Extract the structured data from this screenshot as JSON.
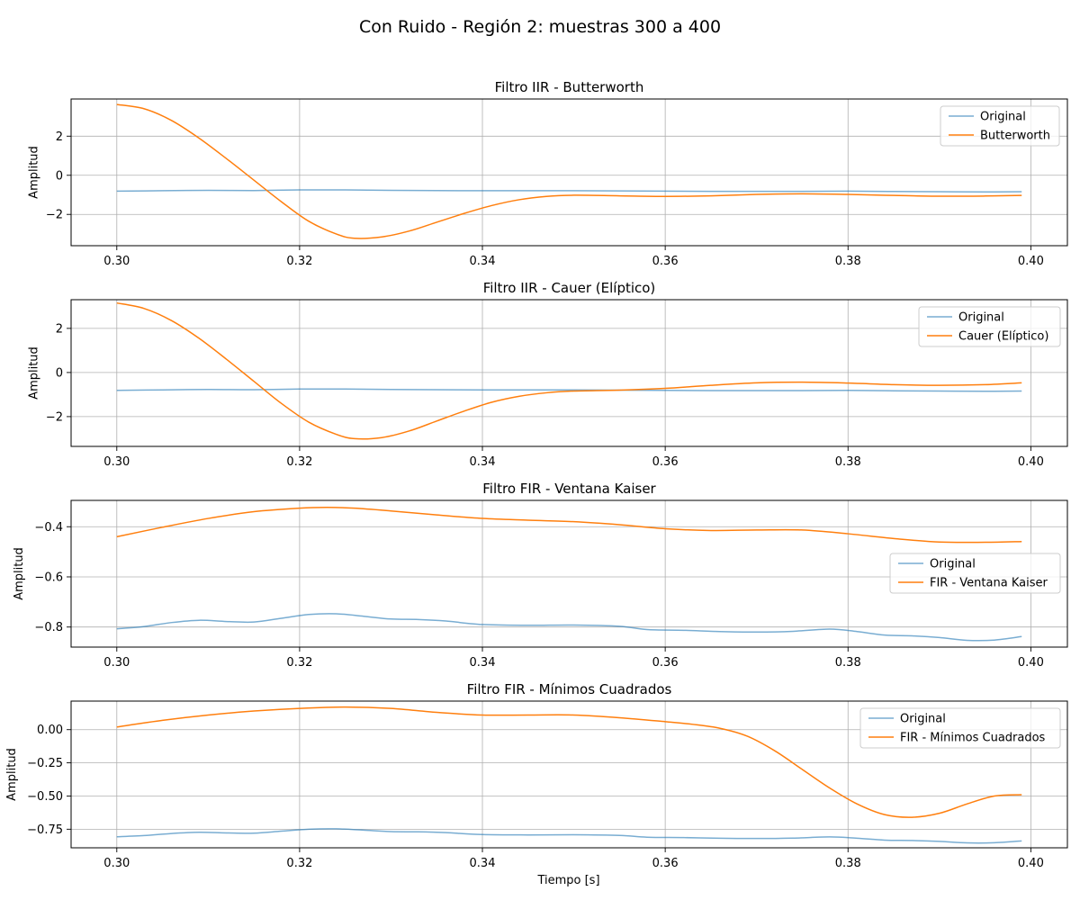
{
  "figure": {
    "suptitle": "Con Ruido - Región 2: muestras 300 a 400",
    "xlabel": "Tiempo [s]",
    "colors": {
      "original": "#1f77b4",
      "filtered": "#ff7f0e",
      "grid": "#b0b0b0"
    }
  },
  "chart_data": [
    {
      "type": "line",
      "title": "Filtro IIR - Butterworth",
      "xlabel": "",
      "ylabel": "Amplitud",
      "xlim": [
        0.295,
        0.404
      ],
      "ylim": [
        -3.6,
        3.9
      ],
      "xticks": [
        0.3,
        0.32,
        0.34,
        0.36,
        0.38,
        0.4
      ],
      "xtick_labels": [
        "0.30",
        "0.32",
        "0.34",
        "0.36",
        "0.38",
        "0.40"
      ],
      "yticks": [
        -2,
        0,
        2
      ],
      "ytick_labels": [
        "−2",
        "0",
        "2"
      ],
      "grid": true,
      "legend": "upper right",
      "series": [
        {
          "name": "Original",
          "color": "#1f77b4",
          "opacity": 0.6,
          "x": [
            0.3,
            0.305,
            0.31,
            0.315,
            0.32,
            0.325,
            0.33,
            0.335,
            0.34,
            0.345,
            0.35,
            0.355,
            0.36,
            0.365,
            0.37,
            0.375,
            0.38,
            0.385,
            0.39,
            0.395,
            0.399
          ],
          "y": [
            -0.81,
            -0.79,
            -0.77,
            -0.78,
            -0.75,
            -0.75,
            -0.77,
            -0.78,
            -0.79,
            -0.79,
            -0.79,
            -0.8,
            -0.81,
            -0.82,
            -0.82,
            -0.82,
            -0.81,
            -0.83,
            -0.84,
            -0.85,
            -0.84
          ]
        },
        {
          "name": "Butterworth",
          "color": "#ff7f0e",
          "opacity": 1,
          "x": [
            0.3,
            0.303,
            0.306,
            0.309,
            0.312,
            0.315,
            0.318,
            0.321,
            0.324,
            0.326,
            0.329,
            0.332,
            0.335,
            0.338,
            0.341,
            0.344,
            0.347,
            0.35,
            0.355,
            0.36,
            0.365,
            0.37,
            0.375,
            0.38,
            0.385,
            0.39,
            0.395,
            0.399
          ],
          "y": [
            3.62,
            3.4,
            2.8,
            1.9,
            0.85,
            -0.25,
            -1.35,
            -2.35,
            -3.0,
            -3.22,
            -3.15,
            -2.85,
            -2.4,
            -1.95,
            -1.55,
            -1.25,
            -1.08,
            -1.02,
            -1.05,
            -1.08,
            -1.05,
            -0.98,
            -0.95,
            -0.98,
            -1.03,
            -1.07,
            -1.06,
            -1.03
          ]
        }
      ]
    },
    {
      "type": "line",
      "title": "Filtro IIR - Cauer (Elíptico)",
      "xlabel": "",
      "ylabel": "Amplitud",
      "xlim": [
        0.295,
        0.404
      ],
      "ylim": [
        -3.35,
        3.3
      ],
      "xticks": [
        0.3,
        0.32,
        0.34,
        0.36,
        0.38,
        0.4
      ],
      "xtick_labels": [
        "0.30",
        "0.32",
        "0.34",
        "0.36",
        "0.38",
        "0.40"
      ],
      "yticks": [
        -2,
        0,
        2
      ],
      "ytick_labels": [
        "−2",
        "0",
        "2"
      ],
      "grid": true,
      "legend": "upper right",
      "series": [
        {
          "name": "Original",
          "color": "#1f77b4",
          "opacity": 0.6,
          "x": [
            0.3,
            0.305,
            0.31,
            0.315,
            0.32,
            0.325,
            0.33,
            0.335,
            0.34,
            0.345,
            0.35,
            0.355,
            0.36,
            0.365,
            0.37,
            0.375,
            0.38,
            0.385,
            0.39,
            0.395,
            0.399
          ],
          "y": [
            -0.81,
            -0.79,
            -0.77,
            -0.78,
            -0.75,
            -0.75,
            -0.77,
            -0.78,
            -0.79,
            -0.79,
            -0.79,
            -0.8,
            -0.81,
            -0.82,
            -0.82,
            -0.82,
            -0.81,
            -0.83,
            -0.84,
            -0.85,
            -0.84
          ]
        },
        {
          "name": "Cauer (Elíptico)",
          "color": "#ff7f0e",
          "opacity": 1,
          "x": [
            0.3,
            0.303,
            0.306,
            0.309,
            0.312,
            0.315,
            0.318,
            0.321,
            0.324,
            0.326,
            0.329,
            0.332,
            0.335,
            0.338,
            0.341,
            0.344,
            0.347,
            0.35,
            0.355,
            0.36,
            0.365,
            0.37,
            0.375,
            0.38,
            0.385,
            0.39,
            0.395,
            0.399
          ],
          "y": [
            3.15,
            2.9,
            2.35,
            1.55,
            0.6,
            -0.4,
            -1.4,
            -2.25,
            -2.8,
            -3.0,
            -2.95,
            -2.65,
            -2.2,
            -1.75,
            -1.35,
            -1.08,
            -0.92,
            -0.84,
            -0.8,
            -0.72,
            -0.58,
            -0.47,
            -0.44,
            -0.48,
            -0.55,
            -0.58,
            -0.55,
            -0.47
          ]
        }
      ]
    },
    {
      "type": "line",
      "title": "Filtro FIR - Ventana Kaiser",
      "xlabel": "",
      "ylabel": "Amplitud",
      "xlim": [
        0.295,
        0.404
      ],
      "ylim": [
        -0.88,
        -0.295
      ],
      "xticks": [
        0.3,
        0.32,
        0.34,
        0.36,
        0.38,
        0.4
      ],
      "xtick_labels": [
        "0.30",
        "0.32",
        "0.34",
        "0.36",
        "0.38",
        "0.40"
      ],
      "yticks": [
        -0.8,
        -0.6,
        -0.4
      ],
      "ytick_labels": [
        "−0.8",
        "−0.6",
        "−0.4"
      ],
      "grid": true,
      "legend": "center right",
      "series": [
        {
          "name": "Original",
          "color": "#1f77b4",
          "opacity": 0.6,
          "x": [
            0.3,
            0.303,
            0.306,
            0.309,
            0.312,
            0.315,
            0.318,
            0.321,
            0.324,
            0.327,
            0.33,
            0.333,
            0.336,
            0.34,
            0.345,
            0.35,
            0.355,
            0.358,
            0.362,
            0.366,
            0.37,
            0.374,
            0.378,
            0.381,
            0.384,
            0.387,
            0.39,
            0.393,
            0.396,
            0.399
          ],
          "y": [
            -0.807,
            -0.798,
            -0.782,
            -0.773,
            -0.778,
            -0.78,
            -0.765,
            -0.75,
            -0.747,
            -0.757,
            -0.768,
            -0.77,
            -0.776,
            -0.79,
            -0.793,
            -0.792,
            -0.797,
            -0.81,
            -0.813,
            -0.818,
            -0.82,
            -0.817,
            -0.808,
            -0.818,
            -0.832,
            -0.835,
            -0.842,
            -0.853,
            -0.852,
            -0.838
          ]
        },
        {
          "name": "FIR - Ventana Kaiser",
          "color": "#ff7f0e",
          "opacity": 1,
          "x": [
            0.3,
            0.305,
            0.31,
            0.315,
            0.32,
            0.323,
            0.326,
            0.33,
            0.335,
            0.34,
            0.345,
            0.35,
            0.355,
            0.36,
            0.365,
            0.37,
            0.375,
            0.38,
            0.385,
            0.39,
            0.395,
            0.399
          ],
          "y": [
            -0.44,
            -0.402,
            -0.367,
            -0.34,
            -0.326,
            -0.323,
            -0.326,
            -0.337,
            -0.353,
            -0.367,
            -0.374,
            -0.38,
            -0.392,
            -0.408,
            -0.415,
            -0.413,
            -0.413,
            -0.428,
            -0.447,
            -0.461,
            -0.462,
            -0.459
          ]
        }
      ]
    },
    {
      "type": "line",
      "title": "Filtro FIR - Mínimos Cuadrados",
      "xlabel": "Tiempo [s]",
      "ylabel": "Amplitud",
      "xlim": [
        0.295,
        0.404
      ],
      "ylim": [
        -0.89,
        0.215
      ],
      "xticks": [
        0.3,
        0.32,
        0.34,
        0.36,
        0.38,
        0.4
      ],
      "xtick_labels": [
        "0.30",
        "0.32",
        "0.34",
        "0.36",
        "0.38",
        "0.40"
      ],
      "yticks": [
        -0.75,
        -0.5,
        -0.25,
        0.0
      ],
      "ytick_labels": [
        "−0.75",
        "−0.50",
        "−0.25",
        "0.00"
      ],
      "grid": true,
      "legend": "upper right",
      "series": [
        {
          "name": "Original",
          "color": "#1f77b4",
          "opacity": 0.6,
          "x": [
            0.3,
            0.303,
            0.306,
            0.309,
            0.312,
            0.315,
            0.318,
            0.321,
            0.324,
            0.327,
            0.33,
            0.333,
            0.336,
            0.34,
            0.345,
            0.35,
            0.355,
            0.358,
            0.362,
            0.366,
            0.37,
            0.374,
            0.378,
            0.381,
            0.384,
            0.387,
            0.39,
            0.393,
            0.396,
            0.399
          ],
          "y": [
            -0.807,
            -0.798,
            -0.782,
            -0.773,
            -0.778,
            -0.78,
            -0.765,
            -0.75,
            -0.747,
            -0.757,
            -0.768,
            -0.77,
            -0.776,
            -0.79,
            -0.793,
            -0.792,
            -0.797,
            -0.81,
            -0.813,
            -0.818,
            -0.82,
            -0.817,
            -0.808,
            -0.818,
            -0.832,
            -0.835,
            -0.842,
            -0.853,
            -0.852,
            -0.838
          ]
        },
        {
          "name": "FIR - Mínimos Cuadrados",
          "color": "#ff7f0e",
          "opacity": 1,
          "x": [
            0.3,
            0.305,
            0.31,
            0.315,
            0.32,
            0.325,
            0.33,
            0.335,
            0.34,
            0.345,
            0.35,
            0.355,
            0.36,
            0.363,
            0.366,
            0.369,
            0.372,
            0.375,
            0.378,
            0.381,
            0.384,
            0.387,
            0.39,
            0.393,
            0.396,
            0.399
          ],
          "y": [
            0.02,
            0.07,
            0.11,
            0.14,
            0.16,
            0.17,
            0.16,
            0.13,
            0.11,
            0.11,
            0.11,
            0.09,
            0.06,
            0.04,
            0.01,
            -0.05,
            -0.16,
            -0.3,
            -0.44,
            -0.56,
            -0.64,
            -0.66,
            -0.63,
            -0.56,
            -0.5,
            -0.49
          ]
        }
      ]
    }
  ]
}
